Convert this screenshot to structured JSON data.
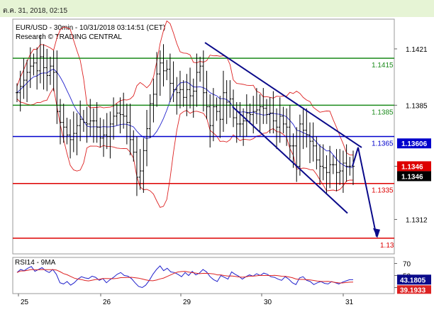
{
  "header": {
    "date_text": "ต.ค. 31, 2018, 02:15"
  },
  "chart_data": {
    "type": "candlestick",
    "title": "EUR/USD - 30min - 10/31/2018 03:14:51 (CET)",
    "subtitle": "Research © TRADING CENTRAL",
    "y_ticks": [
      1.1421,
      1.1385,
      1.1346,
      1.1312
    ],
    "y_range": [
      1.129,
      1.144
    ],
    "x_ticks": [
      "25",
      "26",
      "29",
      "30",
      "31"
    ],
    "levels": [
      {
        "value": 1.1415,
        "label": "1.1415",
        "color": "#1a8a1a"
      },
      {
        "value": 1.1385,
        "label": "1.1385",
        "color": "#1a8a1a"
      },
      {
        "value": 1.1365,
        "label": "1.1365",
        "color": "#0000cc"
      },
      {
        "value": 1.1335,
        "label": "1.1335",
        "color": "#dd0000"
      },
      {
        "value": 1.13,
        "label": "1.13",
        "color": "#dd0000"
      }
    ],
    "price_tags": [
      {
        "value": 1.13606,
        "label": "1.13606",
        "bg": "#0000cc",
        "fg": "#ffffff"
      },
      {
        "value": 1.1346,
        "label": "1.1346",
        "bg": "#dd0000",
        "fg": "#ffffff"
      },
      {
        "value": 1.1346,
        "label": "1.1346",
        "bg": "#000000",
        "fg": "#ffffff"
      }
    ],
    "close_series": [
      1.1393,
      1.1397,
      1.1401,
      1.1406,
      1.141,
      1.1412,
      1.1407,
      1.1416,
      1.1409,
      1.1404,
      1.141,
      1.1406,
      1.1381,
      1.1374,
      1.1371,
      1.1366,
      1.1363,
      1.1367,
      1.1372,
      1.1376,
      1.1374,
      1.1373,
      1.1375,
      1.1375,
      1.1371,
      1.1364,
      1.1366,
      1.1365,
      1.1373,
      1.1378,
      1.138,
      1.1379,
      1.1378,
      1.1374,
      1.1363,
      1.1355,
      1.1339,
      1.1343,
      1.1356,
      1.137,
      1.1386,
      1.1392,
      1.1405,
      1.1412,
      1.1407,
      1.1408,
      1.1399,
      1.1395,
      1.1393,
      1.1395,
      1.139,
      1.1395,
      1.1391,
      1.1394,
      1.1406,
      1.141,
      1.1393,
      1.1384,
      1.1372,
      1.1384,
      1.1381,
      1.1376,
      1.1393,
      1.1387,
      1.1389,
      1.1377,
      1.1373,
      1.1373,
      1.1375,
      1.138,
      1.1379,
      1.1381,
      1.1382,
      1.1384,
      1.1383,
      1.1379,
      1.138,
      1.1375,
      1.1371,
      1.1378,
      1.1373,
      1.1371,
      1.1359,
      1.1359,
      1.1346,
      1.1373,
      1.1369,
      1.1366,
      1.1362,
      1.1359,
      1.135,
      1.1346,
      1.1345,
      1.1342,
      1.1347,
      1.1347,
      1.1342,
      1.1343,
      1.1348,
      1.1346,
      1.1346,
      1.1346
    ],
    "rsi": {
      "label": "RSI14 - 9MA",
      "ticks": [
        70,
        50,
        30
      ],
      "last_value": "43.1805",
      "ma_value": "39.1933",
      "series": [
        55,
        60,
        58,
        62,
        65,
        57,
        60,
        63,
        58,
        55,
        60,
        52,
        38,
        36,
        40,
        34,
        38,
        44,
        48,
        46,
        45,
        49,
        47,
        42,
        45,
        38,
        43,
        47,
        52,
        55,
        50,
        49,
        45,
        38,
        32,
        30,
        34,
        42,
        52,
        60,
        66,
        58,
        62,
        56,
        55,
        52,
        48,
        55,
        50,
        57,
        51,
        54,
        60,
        56,
        48,
        43,
        40,
        50,
        47,
        44,
        56,
        52,
        49,
        44,
        48,
        51,
        49,
        53,
        50,
        54,
        52,
        48,
        47,
        44,
        42,
        48,
        44,
        38,
        35,
        46,
        48,
        42,
        40,
        35,
        38,
        40,
        37,
        36,
        40,
        38,
        36,
        39,
        41,
        43,
        43
      ]
    },
    "annotations": [
      "descending channel",
      "projection arrow to 1.13"
    ]
  }
}
